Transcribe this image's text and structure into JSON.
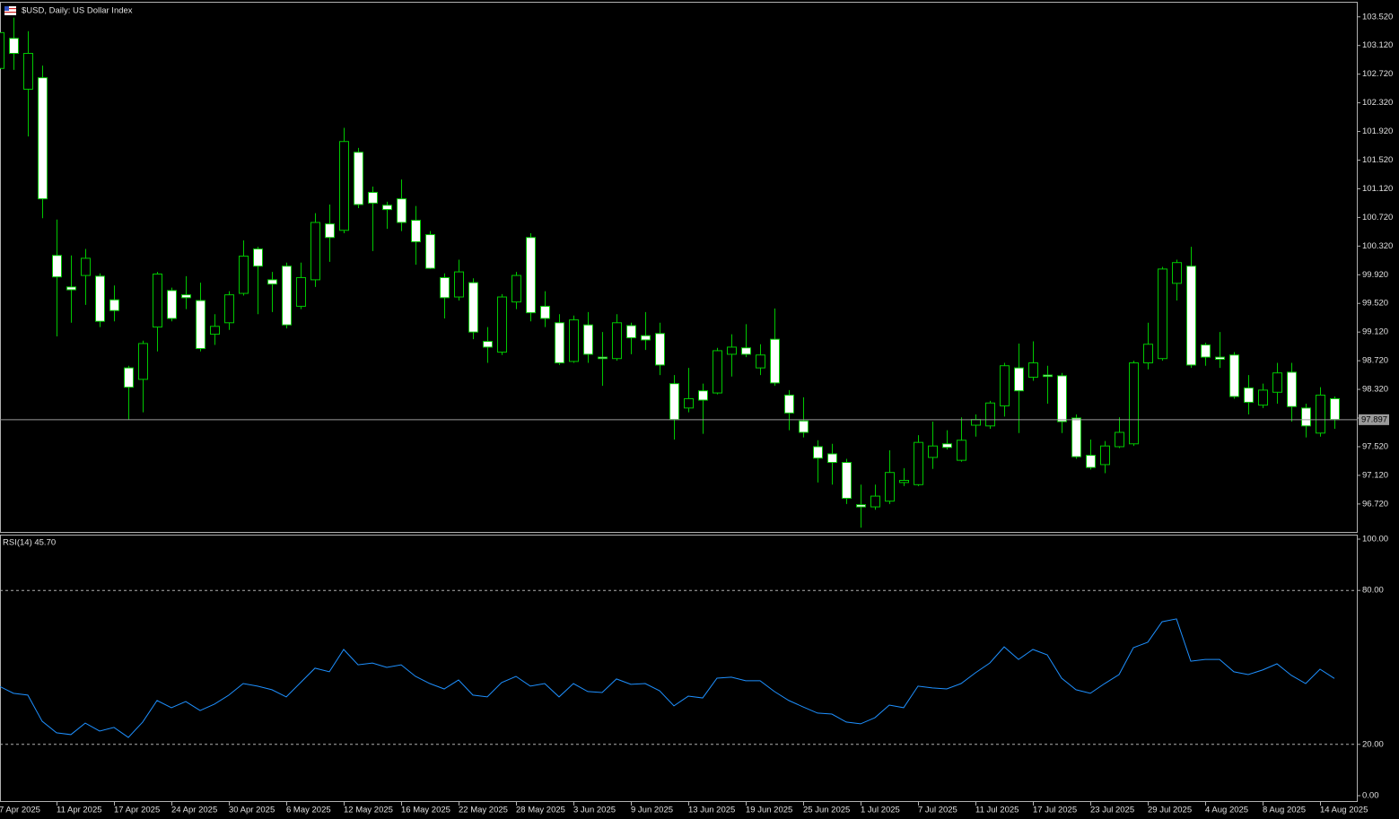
{
  "chart_data": [
    {
      "type": "candlestick",
      "title": "$USD, Daily:  US Dollar Index",
      "categories": [
        "7 Apr 2025",
        null,
        null,
        null,
        "11 Apr 2025",
        null,
        null,
        null,
        "17 Apr 2025",
        null,
        null,
        null,
        "24 Apr 2025",
        null,
        null,
        null,
        "30 Apr 2025",
        null,
        null,
        null,
        "6 May 2025",
        null,
        null,
        null,
        "12 May 2025",
        null,
        null,
        null,
        "16 May 2025",
        null,
        null,
        null,
        "22 May 2025",
        null,
        null,
        null,
        "28 May 2025",
        null,
        null,
        null,
        "3 Jun 2025",
        null,
        null,
        null,
        "9 Jun 2025",
        null,
        null,
        null,
        "13 Jun 2025",
        null,
        null,
        null,
        "19 Jun 2025",
        null,
        null,
        null,
        "25 Jun 2025",
        null,
        null,
        null,
        "1 Jul 2025",
        null,
        null,
        null,
        "7 Jul 2025",
        null,
        null,
        null,
        "11 Jul 2025",
        null,
        null,
        null,
        "17 Jul 2025",
        null,
        null,
        null,
        "23 Jul 2025",
        null,
        null,
        null,
        "29 Jul 2025",
        null,
        null,
        null,
        "4 Aug 2025",
        null,
        null,
        null,
        "8 Aug 2025",
        null,
        null,
        null,
        "14 Aug 2025",
        null
      ],
      "open": [
        102.8,
        103.22,
        102.51,
        102.67,
        100.19,
        99.75,
        99.91,
        99.9,
        99.57,
        98.62,
        98.46,
        99.19,
        99.7,
        99.64,
        99.56,
        99.09,
        99.25,
        99.66,
        100.28,
        99.85,
        100.04,
        99.48,
        99.85,
        100.63,
        100.54,
        101.63,
        101.07,
        100.89,
        100.98,
        100.68,
        100.48,
        99.88,
        99.61,
        99.81,
        98.99,
        98.84,
        99.54,
        100.44,
        99.48,
        99.25,
        98.71,
        99.22,
        98.77,
        98.75,
        99.21,
        99.07,
        99.1,
        98.4,
        98.06,
        98.3,
        98.27,
        98.81,
        98.9,
        98.62,
        99.02,
        98.24,
        97.88,
        97.52,
        97.42,
        97.3,
        96.71,
        96.68,
        96.76,
        97.02,
        96.99,
        97.37,
        97.56,
        97.33,
        97.82,
        97.81,
        98.09,
        98.62,
        98.49,
        98.52,
        98.51,
        97.92,
        97.4,
        97.27,
        97.52,
        97.56,
        98.69,
        98.75,
        99.8,
        100.04,
        98.94,
        98.77,
        98.8,
        98.34,
        98.1,
        98.28,
        98.56,
        98.06,
        97.71,
        98.19
      ],
      "high": [
        103.55,
        103.51,
        103.32,
        102.84,
        100.69,
        100.19,
        100.28,
        99.94,
        99.77,
        98.65,
        99.0,
        99.96,
        99.74,
        99.9,
        99.81,
        99.37,
        99.69,
        100.4,
        100.31,
        99.96,
        100.09,
        100.09,
        100.78,
        100.9,
        101.97,
        101.69,
        101.15,
        100.94,
        101.25,
        100.88,
        100.53,
        99.94,
        100.13,
        99.87,
        99.19,
        99.65,
        99.96,
        100.5,
        99.69,
        99.37,
        99.35,
        99.4,
        99.12,
        99.37,
        99.25,
        99.4,
        99.25,
        98.52,
        98.62,
        98.4,
        98.9,
        99.09,
        99.23,
        98.95,
        99.45,
        98.31,
        98.21,
        97.61,
        97.56,
        97.35,
        96.99,
        96.99,
        97.47,
        97.22,
        97.68,
        97.87,
        97.75,
        97.93,
        97.97,
        98.16,
        98.69,
        98.96,
        98.99,
        98.65,
        98.55,
        97.97,
        97.62,
        97.6,
        97.93,
        98.72,
        99.25,
        100.03,
        100.13,
        100.31,
        98.97,
        99.12,
        98.84,
        98.52,
        98.4,
        98.69,
        98.69,
        98.12,
        98.35,
        98.22
      ],
      "low": [
        102.6,
        102.78,
        101.85,
        100.71,
        99.06,
        99.25,
        99.5,
        99.19,
        99.27,
        97.9,
        98.0,
        98.85,
        99.27,
        99.44,
        98.85,
        98.94,
        99.15,
        99.63,
        99.37,
        99.4,
        99.17,
        99.44,
        99.75,
        100.1,
        100.5,
        100.85,
        100.25,
        100.56,
        100.53,
        100.06,
        100.0,
        99.31,
        99.56,
        99.02,
        98.69,
        98.8,
        99.44,
        99.27,
        99.19,
        98.66,
        98.69,
        98.69,
        98.37,
        98.72,
        98.81,
        98.87,
        98.52,
        97.62,
        98.0,
        97.7,
        98.25,
        98.5,
        98.77,
        98.52,
        98.37,
        97.75,
        97.65,
        97.02,
        96.99,
        96.72,
        96.39,
        96.64,
        96.72,
        96.97,
        96.97,
        97.21,
        97.48,
        97.31,
        97.66,
        97.77,
        97.94,
        97.71,
        98.44,
        98.12,
        97.71,
        97.35,
        97.2,
        97.15,
        97.5,
        97.53,
        98.6,
        98.72,
        99.56,
        98.62,
        98.65,
        98.62,
        98.19,
        97.97,
        98.06,
        98.12,
        97.87,
        97.65,
        97.66,
        97.77
      ],
      "close": [
        103.3,
        103.01,
        103.01,
        100.98,
        99.89,
        99.71,
        100.15,
        99.27,
        99.42,
        98.35,
        98.96,
        99.93,
        99.31,
        99.6,
        98.89,
        99.2,
        99.64,
        100.18,
        100.04,
        99.79,
        99.22,
        99.88,
        100.65,
        100.44,
        101.78,
        100.9,
        100.92,
        100.83,
        100.65,
        100.38,
        100.01,
        99.6,
        99.96,
        99.12,
        98.91,
        99.61,
        99.91,
        99.39,
        99.31,
        98.69,
        99.29,
        98.81,
        98.75,
        99.25,
        99.04,
        99.01,
        98.66,
        97.9,
        98.19,
        98.17,
        98.86,
        98.91,
        98.81,
        98.8,
        98.41,
        97.99,
        97.72,
        97.36,
        97.3,
        96.8,
        96.68,
        96.83,
        97.16,
        97.05,
        97.58,
        97.53,
        97.51,
        97.61,
        97.9,
        98.13,
        98.65,
        98.3,
        98.69,
        98.5,
        97.87,
        97.38,
        97.23,
        97.53,
        97.72,
        98.69,
        98.95,
        100.0,
        100.09,
        98.66,
        98.77,
        98.74,
        98.22,
        98.14,
        98.31,
        98.55,
        98.08,
        97.81,
        98.24,
        97.9
      ],
      "last_price": 97.897,
      "bull_color": "#000000",
      "bear_color": "#ffffff",
      "wick_color": "#00c800",
      "ylim": [
        96.33,
        103.73
      ],
      "yticks": [
        {
          "value": 96.72,
          "label": "96.720"
        },
        {
          "value": 97.12,
          "label": "97.120"
        },
        {
          "value": 97.52,
          "label": "97.520"
        },
        {
          "value": 97.92,
          "label": "97.920"
        },
        {
          "value": 98.32,
          "label": "98.320"
        },
        {
          "value": 98.72,
          "label": "98.720"
        },
        {
          "value": 99.12,
          "label": "99.120"
        },
        {
          "value": 99.52,
          "label": "99.520"
        },
        {
          "value": 99.92,
          "label": "99.920"
        },
        {
          "value": 100.32,
          "label": "100.320"
        },
        {
          "value": 100.72,
          "label": "100.720"
        },
        {
          "value": 101.12,
          "label": "101.120"
        },
        {
          "value": 101.52,
          "label": "101.520"
        },
        {
          "value": 101.92,
          "label": "101.920"
        },
        {
          "value": 102.32,
          "label": "102.320"
        },
        {
          "value": 102.72,
          "label": "102.720"
        },
        {
          "value": 103.12,
          "label": "103.120"
        },
        {
          "value": 103.52,
          "label": "103.520"
        }
      ]
    },
    {
      "type": "line",
      "title": "RSI(14) 45.70",
      "color": "#1e90ff",
      "values": [
        42.7,
        39.9,
        39.2,
        29.0,
        24.5,
        23.8,
        28.3,
        25.2,
        26.6,
        22.7,
        28.7,
        37.1,
        34.3,
        36.7,
        33.2,
        35.7,
        39.2,
        43.7,
        42.7,
        41.3,
        38.5,
        44.1,
        49.7,
        48.3,
        57.0,
        51.0,
        51.7,
        50.0,
        51.0,
        46.5,
        43.7,
        41.6,
        45.1,
        39.2,
        38.5,
        44.1,
        46.5,
        42.7,
        43.7,
        38.5,
        43.7,
        40.6,
        40.2,
        45.5,
        43.4,
        43.7,
        40.9,
        35.0,
        38.8,
        38.1,
        45.8,
        46.2,
        44.8,
        44.8,
        40.6,
        37.1,
        34.6,
        32.2,
        31.8,
        28.7,
        28.0,
        30.4,
        35.3,
        34.3,
        42.7,
        42.0,
        41.6,
        43.7,
        47.9,
        51.7,
        58.0,
        53.1,
        57.0,
        54.9,
        45.8,
        41.3,
        39.9,
        43.7,
        47.2,
        57.7,
        59.8,
        67.8,
        68.9,
        52.4,
        53.1,
        53.1,
        48.3,
        47.2,
        49.0,
        51.4,
        46.9,
        43.7,
        49.3,
        45.7
      ],
      "levels": [
        80,
        20
      ],
      "ylim": [
        -2.1,
        101.4
      ],
      "yticks": [
        {
          "value": 0,
          "label": "0.00"
        },
        {
          "value": 20,
          "label": "20.00"
        },
        {
          "value": 80,
          "label": "80.00"
        },
        {
          "value": 100,
          "label": "100.00"
        }
      ]
    }
  ]
}
